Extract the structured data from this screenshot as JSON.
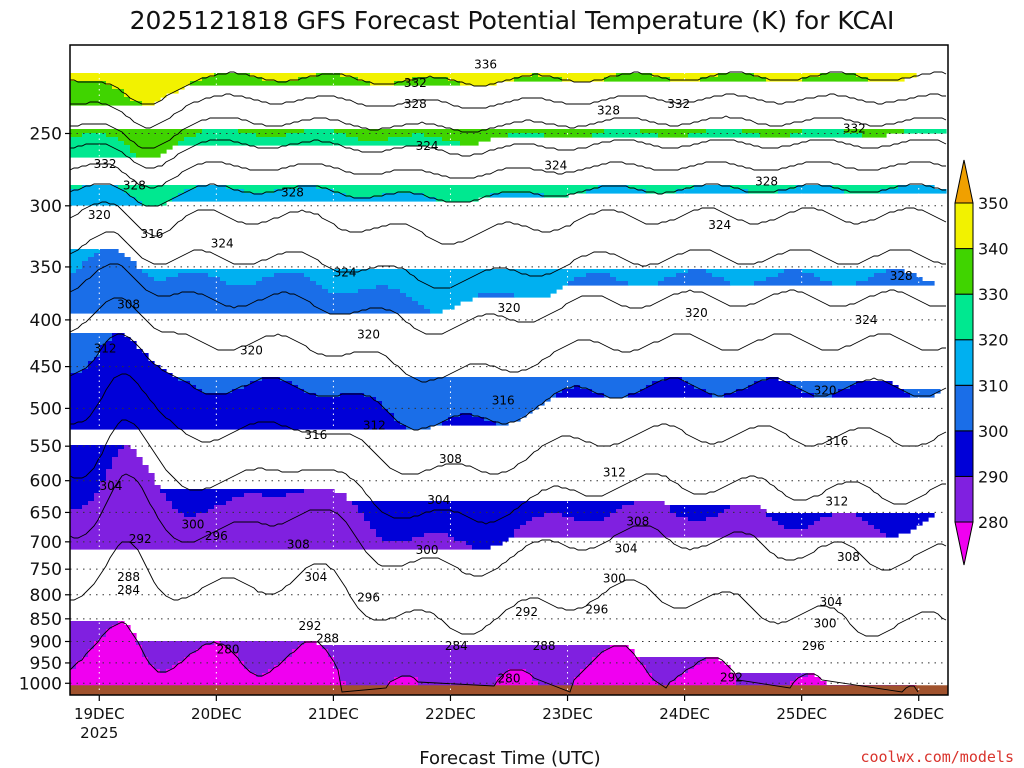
{
  "chart_data": {
    "type": "heatmap",
    "title": "2025121818 GFS Forecast Potential Temperature (K) for KCAI",
    "xlabel": "Forecast Time (UTC)",
    "ylabel": "",
    "x_ticks": [
      "19DEC",
      "20DEC",
      "21DEC",
      "22DEC",
      "23DEC",
      "24DEC",
      "25DEC",
      "26DEC"
    ],
    "x_tick_sublabel": "2025",
    "y_ticks": [
      250,
      300,
      350,
      400,
      450,
      500,
      550,
      600,
      650,
      700,
      750,
      800,
      850,
      900,
      950,
      1000
    ],
    "ylim": [
      1000,
      200
    ],
    "y_scale": "log-pressure",
    "grid": true,
    "colorbar": {
      "levels": [
        280,
        290,
        300,
        310,
        320,
        330,
        340,
        350
      ],
      "colors": [
        "#f000f0",
        "#8020e0",
        "#0000d8",
        "#1a6ee8",
        "#00b0f0",
        "#00e890",
        "#40d400",
        "#f2f200",
        "#f0a000"
      ],
      "extend": "both"
    },
    "contour_interval": 4,
    "contour_labels": [
      {
        "v": 336,
        "t": 22.3,
        "p": 210
      },
      {
        "v": 332,
        "t": 21.7,
        "p": 220
      },
      {
        "v": 328,
        "t": 21.7,
        "p": 232
      },
      {
        "v": 332,
        "t": 23.95,
        "p": 232
      },
      {
        "v": 328,
        "t": 23.35,
        "p": 236
      },
      {
        "v": 324,
        "t": 21.8,
        "p": 258
      },
      {
        "v": 324,
        "t": 22.9,
        "p": 271
      },
      {
        "v": 332,
        "t": 25.45,
        "p": 247
      },
      {
        "v": 328,
        "t": 20.65,
        "p": 290
      },
      {
        "v": 328,
        "t": 24.7,
        "p": 282
      },
      {
        "v": 324,
        "t": 24.3,
        "p": 315
      },
      {
        "v": 324,
        "t": 20.05,
        "p": 330
      },
      {
        "v": 324,
        "t": 21.1,
        "p": 355
      },
      {
        "v": 328,
        "t": 25.85,
        "p": 358
      },
      {
        "v": 320,
        "t": 21.3,
        "p": 415
      },
      {
        "v": 320,
        "t": 20.3,
        "p": 432
      },
      {
        "v": 320,
        "t": 22.5,
        "p": 388
      },
      {
        "v": 320,
        "t": 24.1,
        "p": 393
      },
      {
        "v": 324,
        "t": 25.55,
        "p": 400
      },
      {
        "v": 320,
        "t": 25.2,
        "p": 478
      },
      {
        "v": 316,
        "t": 22.45,
        "p": 490
      },
      {
        "v": 316,
        "t": 25.3,
        "p": 543
      },
      {
        "v": 316,
        "t": 20.85,
        "p": 535
      },
      {
        "v": 312,
        "t": 21.35,
        "p": 522
      },
      {
        "v": 308,
        "t": 22.0,
        "p": 568
      },
      {
        "v": 312,
        "t": 23.4,
        "p": 588
      },
      {
        "v": 304,
        "t": 21.9,
        "p": 630
      },
      {
        "v": 312,
        "t": 25.3,
        "p": 632
      },
      {
        "v": 308,
        "t": 23.6,
        "p": 665
      },
      {
        "v": 308,
        "t": 20.7,
        "p": 705
      },
      {
        "v": 304,
        "t": 23.5,
        "p": 712
      },
      {
        "v": 300,
        "t": 21.8,
        "p": 715
      },
      {
        "v": 308,
        "t": 25.4,
        "p": 727
      },
      {
        "v": 304,
        "t": 20.85,
        "p": 765
      },
      {
        "v": 300,
        "t": 23.4,
        "p": 768
      },
      {
        "v": 296,
        "t": 21.3,
        "p": 805
      },
      {
        "v": 296,
        "t": 23.25,
        "p": 830
      },
      {
        "v": 292,
        "t": 22.65,
        "p": 835
      },
      {
        "v": 304,
        "t": 25.25,
        "p": 815
      },
      {
        "v": 292,
        "t": 20.8,
        "p": 865
      },
      {
        "v": 288,
        "t": 20.95,
        "p": 893
      },
      {
        "v": 300,
        "t": 25.2,
        "p": 860
      },
      {
        "v": 284,
        "t": 22.05,
        "p": 910
      },
      {
        "v": 288,
        "t": 22.8,
        "p": 910
      },
      {
        "v": 296,
        "t": 25.1,
        "p": 910
      },
      {
        "v": 280,
        "t": 20.1,
        "p": 918
      },
      {
        "v": 280,
        "t": 22.5,
        "p": 988
      },
      {
        "v": 292,
        "t": 24.4,
        "p": 985
      },
      {
        "v": 332,
        "t": 19.05,
        "p": 270
      },
      {
        "v": 328,
        "t": 19.3,
        "p": 285
      },
      {
        "v": 320,
        "t": 19.0,
        "p": 307
      },
      {
        "v": 316,
        "t": 19.45,
        "p": 322
      },
      {
        "v": 308,
        "t": 19.25,
        "p": 385
      },
      {
        "v": 312,
        "t": 19.05,
        "p": 430
      },
      {
        "v": 304,
        "t": 19.1,
        "p": 608
      },
      {
        "v": 300,
        "t": 19.8,
        "p": 670
      },
      {
        "v": 296,
        "t": 20.0,
        "p": 690
      },
      {
        "v": 292,
        "t": 19.35,
        "p": 695
      },
      {
        "v": 288,
        "t": 19.25,
        "p": 765
      },
      {
        "v": 284,
        "t": 19.25,
        "p": 790
      }
    ]
  },
  "footer": {
    "credit": "coolwx.com/models"
  }
}
